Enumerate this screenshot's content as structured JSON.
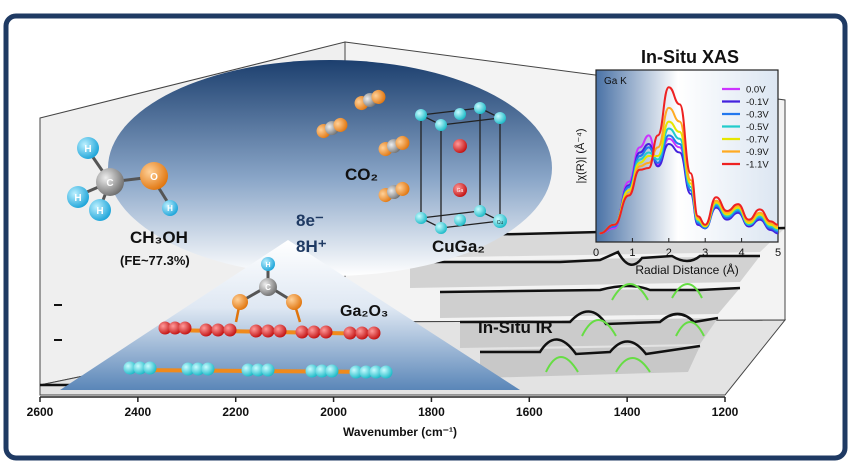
{
  "ir_axis": {
    "title": "Wavenumber (cm⁻¹)",
    "ticks": [
      2600,
      2400,
      2200,
      2000,
      1800,
      1600,
      1400,
      1200
    ],
    "range": [
      2600,
      1200
    ]
  },
  "labels": {
    "ch3oh": "CH₃OH",
    "fe": "(FE~77.3%)",
    "co2": "CO₂",
    "cuga2": "CuGa₂",
    "electrons": "8e⁻",
    "protons": "8H⁺",
    "ga2o3": "Ga₂O₃",
    "insitu_ir": "In-Situ IR",
    "insitu_xas": "In-Situ XAS"
  },
  "atom_labels": {
    "h": "H",
    "c": "C",
    "o": "O",
    "ga": "Ga",
    "cu": "Cu"
  },
  "colors": {
    "frame": "#1f3a63",
    "hydrogen": "#2bb6e6",
    "carbon": "#8c8c8c",
    "oxygen": "#f08a1c",
    "copper": "#33d6dc",
    "gallium": "#dd1a1a",
    "ir_peak": "#66dd44"
  },
  "chart_data": {
    "type": "line",
    "title": "In-Situ XAS",
    "annotation": "Ga K",
    "xlabel": "Radial Distance (Å)",
    "ylabel": "|χ(R)| (Å⁻⁴)",
    "xlim": [
      0,
      5
    ],
    "xticks": [
      0,
      1,
      2,
      3,
      4,
      5
    ],
    "legend_position": "top-right",
    "series": [
      {
        "name": "0.0V",
        "color": "#cc33ff",
        "x": [
          0.1,
          0.5,
          0.9,
          1.2,
          1.45,
          1.7,
          2.0,
          2.3,
          2.6,
          2.8,
          3.0,
          3.3,
          3.6,
          3.9,
          4.2,
          4.5,
          4.8,
          5.0
        ],
        "y": [
          0.05,
          0.08,
          0.35,
          0.55,
          0.62,
          0.45,
          0.6,
          0.55,
          0.3,
          0.1,
          0.08,
          0.22,
          0.14,
          0.18,
          0.1,
          0.14,
          0.08,
          0.06
        ]
      },
      {
        "name": "-0.1V",
        "color": "#4422dd",
        "x": [
          0.1,
          0.5,
          0.9,
          1.2,
          1.45,
          1.7,
          2.0,
          2.3,
          2.6,
          2.8,
          3.0,
          3.3,
          3.6,
          3.9,
          4.2,
          4.5,
          4.8,
          5.0
        ],
        "y": [
          0.05,
          0.09,
          0.33,
          0.52,
          0.57,
          0.44,
          0.57,
          0.52,
          0.28,
          0.1,
          0.08,
          0.2,
          0.13,
          0.17,
          0.09,
          0.13,
          0.07,
          0.05
        ]
      },
      {
        "name": "-0.3V",
        "color": "#2277ee",
        "x": [
          0.1,
          0.5,
          0.9,
          1.2,
          1.45,
          1.7,
          2.0,
          2.3,
          2.6,
          2.8,
          3.0,
          3.3,
          3.6,
          3.9,
          4.2,
          4.5,
          4.8,
          5.0
        ],
        "y": [
          0.05,
          0.09,
          0.32,
          0.5,
          0.55,
          0.46,
          0.62,
          0.57,
          0.3,
          0.11,
          0.08,
          0.21,
          0.14,
          0.18,
          0.1,
          0.14,
          0.08,
          0.06
        ]
      },
      {
        "name": "-0.5V",
        "color": "#22cccc",
        "x": [
          0.1,
          0.5,
          0.9,
          1.2,
          1.45,
          1.7,
          2.0,
          2.3,
          2.6,
          2.8,
          3.0,
          3.3,
          3.6,
          3.9,
          4.2,
          4.5,
          4.8,
          5.0
        ],
        "y": [
          0.05,
          0.1,
          0.3,
          0.48,
          0.52,
          0.48,
          0.66,
          0.6,
          0.32,
          0.12,
          0.09,
          0.22,
          0.15,
          0.19,
          0.1,
          0.15,
          0.09,
          0.07
        ]
      },
      {
        "name": "-0.7V",
        "color": "#e6e600",
        "x": [
          0.1,
          0.5,
          0.9,
          1.2,
          1.45,
          1.7,
          2.0,
          2.3,
          2.6,
          2.8,
          3.0,
          3.3,
          3.6,
          3.9,
          4.2,
          4.5,
          4.8,
          5.0
        ],
        "y": [
          0.05,
          0.1,
          0.3,
          0.46,
          0.5,
          0.5,
          0.7,
          0.64,
          0.34,
          0.13,
          0.09,
          0.23,
          0.16,
          0.2,
          0.11,
          0.16,
          0.1,
          0.08
        ]
      },
      {
        "name": "-0.9V",
        "color": "#ffaa22",
        "x": [
          0.1,
          0.5,
          0.9,
          1.2,
          1.45,
          1.7,
          2.0,
          2.3,
          2.6,
          2.8,
          3.0,
          3.3,
          3.6,
          3.9,
          4.2,
          4.5,
          4.8,
          5.0
        ],
        "y": [
          0.05,
          0.1,
          0.28,
          0.44,
          0.46,
          0.55,
          0.78,
          0.7,
          0.36,
          0.14,
          0.1,
          0.24,
          0.17,
          0.21,
          0.12,
          0.17,
          0.11,
          0.09
        ]
      },
      {
        "name": "-1.1V",
        "color": "#ee2222",
        "x": [
          0.1,
          0.5,
          0.9,
          1.2,
          1.45,
          1.7,
          2.0,
          2.3,
          2.6,
          2.8,
          3.0,
          3.3,
          3.6,
          3.9,
          4.2,
          4.5,
          4.8,
          5.0
        ],
        "y": [
          0.05,
          0.1,
          0.27,
          0.42,
          0.43,
          0.62,
          0.9,
          0.8,
          0.4,
          0.15,
          0.1,
          0.26,
          0.18,
          0.22,
          0.13,
          0.19,
          0.12,
          0.1
        ]
      }
    ]
  }
}
